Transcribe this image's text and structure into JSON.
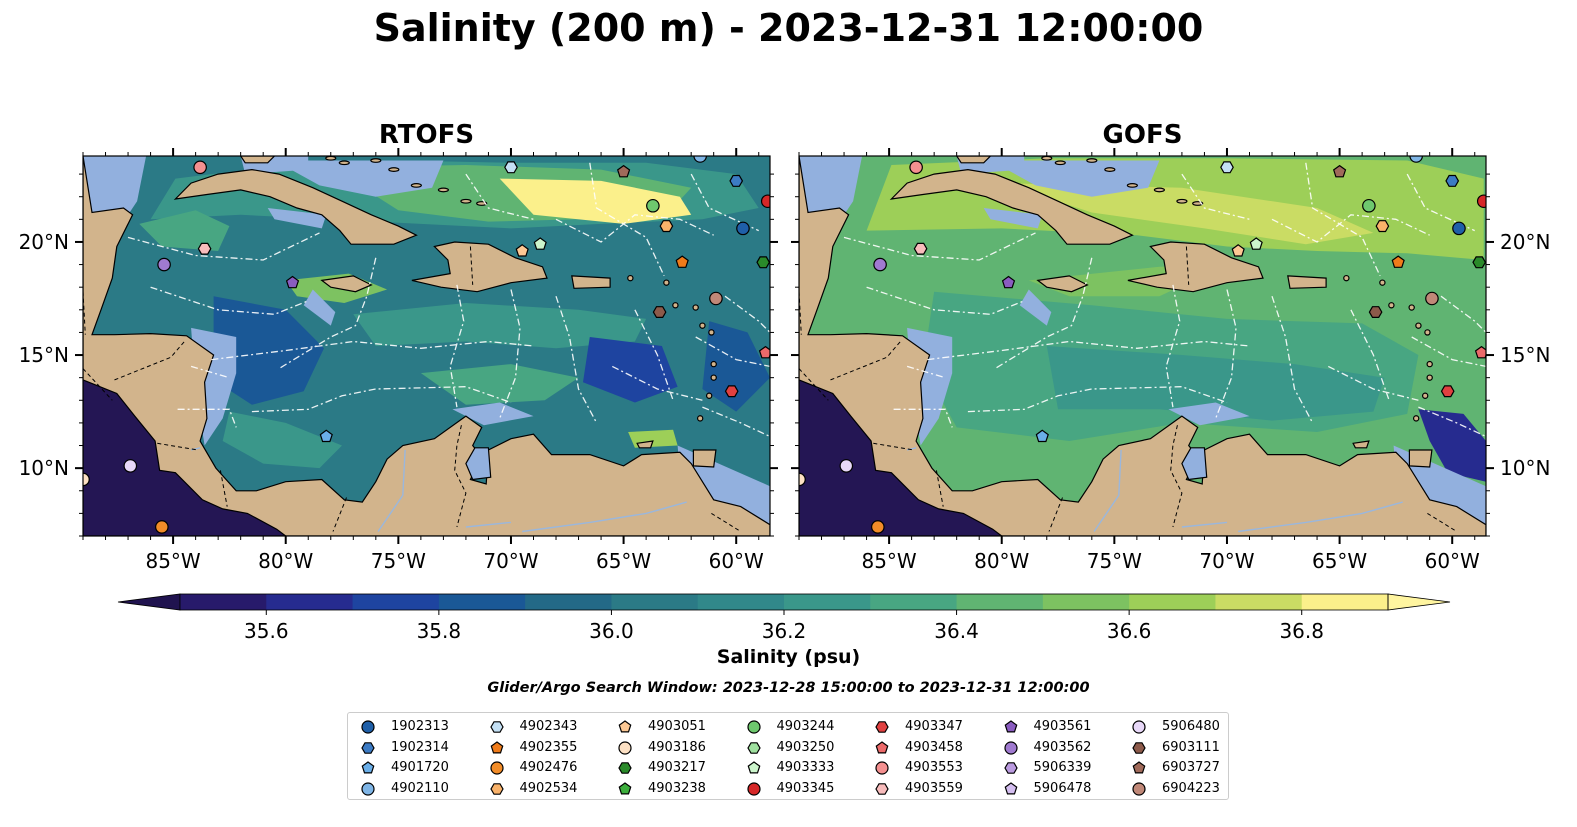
{
  "title": "Salinity (200 m) - 2023-12-31 12:00:00",
  "panels": [
    {
      "title": "RTOFS",
      "palette": "rtofs"
    },
    {
      "title": "GOFS",
      "palette": "gofs"
    }
  ],
  "lat_ticks": [
    {
      "value": 20,
      "label": "20°N"
    },
    {
      "value": 15,
      "label": "15°N"
    },
    {
      "value": 10,
      "label": "10°N"
    }
  ],
  "lon_ticks": [
    {
      "value": -85,
      "label": "85°W"
    },
    {
      "value": -80,
      "label": "80°W"
    },
    {
      "value": -75,
      "label": "75°W"
    },
    {
      "value": -70,
      "label": "70°W"
    },
    {
      "value": -65,
      "label": "65°W"
    },
    {
      "value": -60,
      "label": "60°W"
    }
  ],
  "extent": {
    "lon_min": -89,
    "lon_max": -58.5,
    "lat_min": 7,
    "lat_max": 23.8
  },
  "colorbar": {
    "label": "Salinity (psu)",
    "vmin": 35.5,
    "vmax": 36.9,
    "step": 0.1,
    "extend": "both",
    "tick_values": [
      35.6,
      35.8,
      36.0,
      36.2,
      36.4,
      36.6,
      36.8
    ],
    "tick_labels": [
      "35.6",
      "35.8",
      "36.0",
      "36.2",
      "36.4",
      "36.6",
      "36.8"
    ],
    "colors": [
      "#271a6b",
      "#262b8f",
      "#1e44a0",
      "#1a5896",
      "#236987",
      "#2b7a86",
      "#31888a",
      "#3a978a",
      "#48a682",
      "#60b472",
      "#7dc261",
      "#9dcf58",
      "#cadc64",
      "#fbf08b"
    ],
    "under_color": "#20134f",
    "over_color": "#fff5a0"
  },
  "map_colors": {
    "land": "#d2b48c",
    "shallow": "#92b0de",
    "rivers": "#9ab7dd"
  },
  "search_window": "Glider/Argo Search Window: 2023-12-28 15:00:00 to 2023-12-31 12:00:00",
  "legend": [
    {
      "id": "1902313",
      "marker": "circle",
      "color": "#1f5fa8"
    },
    {
      "id": "1902314",
      "marker": "hexagon",
      "color": "#3c7bc4"
    },
    {
      "id": "4901720",
      "marker": "pentagon",
      "color": "#6aaee8"
    },
    {
      "id": "4902110",
      "marker": "circle",
      "color": "#7fb5e6"
    },
    {
      "id": "4902343",
      "marker": "hexagon",
      "color": "#c4e0f4"
    },
    {
      "id": "4902355",
      "marker": "pentagon",
      "color": "#ef7b1a"
    },
    {
      "id": "4902476",
      "marker": "circle",
      "color": "#f28c28"
    },
    {
      "id": "4902534",
      "marker": "hexagon",
      "color": "#f9b26a"
    },
    {
      "id": "4903051",
      "marker": "pentagon",
      "color": "#fcc894"
    },
    {
      "id": "4903186",
      "marker": "circle",
      "color": "#fde1c4"
    },
    {
      "id": "4903217",
      "marker": "hexagon",
      "color": "#2a8a2a"
    },
    {
      "id": "4903238",
      "marker": "pentagon",
      "color": "#3cae3c"
    },
    {
      "id": "4903244",
      "marker": "circle",
      "color": "#6ec86e"
    },
    {
      "id": "4903250",
      "marker": "hexagon",
      "color": "#9fe09f"
    },
    {
      "id": "4903333",
      "marker": "pentagon",
      "color": "#ccf5cc"
    },
    {
      "id": "4903345",
      "marker": "circle",
      "color": "#d62728"
    },
    {
      "id": "4903347",
      "marker": "hexagon",
      "color": "#e04040"
    },
    {
      "id": "4903458",
      "marker": "pentagon",
      "color": "#ec6a6a"
    },
    {
      "id": "4903553",
      "marker": "circle",
      "color": "#f49090"
    },
    {
      "id": "4903559",
      "marker": "hexagon",
      "color": "#f8bcbc"
    },
    {
      "id": "4903561",
      "marker": "pentagon",
      "color": "#8a5cc0"
    },
    {
      "id": "4903562",
      "marker": "circle",
      "color": "#a07ad0"
    },
    {
      "id": "5906339",
      "marker": "hexagon",
      "color": "#bb9be0"
    },
    {
      "id": "5906478",
      "marker": "pentagon",
      "color": "#d4bef0"
    },
    {
      "id": "5906480",
      "marker": "circle",
      "color": "#e8d8f8"
    },
    {
      "id": "6903111",
      "marker": "hexagon",
      "color": "#8c5a4a"
    },
    {
      "id": "6903727",
      "marker": "pentagon",
      "color": "#a06a5a"
    },
    {
      "id": "6904223",
      "marker": "circle",
      "color": "#c08878"
    }
  ],
  "floats": [
    {
      "id": "4903553",
      "lon": -83.8,
      "lat": 23.3
    },
    {
      "id": "4902343",
      "lon": -70.0,
      "lat": 23.3
    },
    {
      "id": "6903727",
      "lon": -65.0,
      "lat": 23.1
    },
    {
      "id": "4902110",
      "lon": -61.6,
      "lat": 23.8
    },
    {
      "id": "1902314",
      "lon": -60.0,
      "lat": 22.7
    },
    {
      "id": "4903345",
      "lon": -58.6,
      "lat": 21.8
    },
    {
      "id": "4903244",
      "lon": -63.7,
      "lat": 21.6
    },
    {
      "id": "4902534",
      "lon": -63.1,
      "lat": 20.7
    },
    {
      "id": "1902313",
      "lon": -59.7,
      "lat": 20.6
    },
    {
      "id": "4903333",
      "lon": -68.7,
      "lat": 19.9
    },
    {
      "id": "4903051",
      "lon": -69.5,
      "lat": 19.6
    },
    {
      "id": "4902355",
      "lon": -62.4,
      "lat": 19.1
    },
    {
      "id": "4903217",
      "lon": -58.8,
      "lat": 19.1
    },
    {
      "id": "4903559",
      "lon": -83.6,
      "lat": 19.7
    },
    {
      "id": "4903562",
      "lon": -85.4,
      "lat": 19.0
    },
    {
      "id": "4903561",
      "lon": -79.7,
      "lat": 18.2
    },
    {
      "id": "6904223",
      "lon": -60.9,
      "lat": 17.5
    },
    {
      "id": "6903111",
      "lon": -63.4,
      "lat": 16.9
    },
    {
      "id": "4903458",
      "lon": -58.7,
      "lat": 15.1
    },
    {
      "id": "4903347",
      "lon": -60.2,
      "lat": 13.4
    },
    {
      "id": "4901720",
      "lon": -78.2,
      "lat": 11.4
    },
    {
      "id": "5906480",
      "lon": -86.9,
      "lat": 10.1
    },
    {
      "id": "4903186",
      "lon": -89.0,
      "lat": 9.5
    },
    {
      "id": "4902476",
      "lon": -85.5,
      "lat": 7.4
    }
  ]
}
